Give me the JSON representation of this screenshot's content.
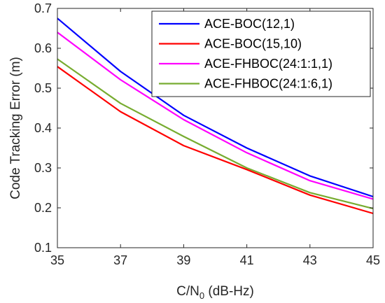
{
  "chart_data": {
    "type": "line",
    "title": "",
    "xlabel_main": "C/N",
    "xlabel_sub": "0",
    "xlabel_tail": " (dB-Hz)",
    "ylabel": "Code Tracking Error (m)",
    "x": [
      35,
      37,
      39,
      41,
      43,
      45
    ],
    "xlim": [
      35,
      45
    ],
    "ylim": [
      0.1,
      0.7
    ],
    "xticks": [
      "35",
      "37",
      "39",
      "41",
      "43",
      "45"
    ],
    "yticks": [
      "0.1",
      "0.2",
      "0.3",
      "0.4",
      "0.5",
      "0.6",
      "0.7"
    ],
    "grid": false,
    "legend_position": "top-right",
    "series": [
      {
        "name": "ACE-BOC(12,1)",
        "color": "#0000ff",
        "values": [
          0.675,
          0.542,
          0.432,
          0.35,
          0.28,
          0.228
        ]
      },
      {
        "name": "ACE-BOC(15,10)",
        "color": "#ff0000",
        "values": [
          0.554,
          0.441,
          0.356,
          0.296,
          0.232,
          0.186
        ]
      },
      {
        "name": "ACE-FHBOC(24:1:1,1)",
        "color": "#ff00ff",
        "values": [
          0.64,
          0.521,
          0.421,
          0.338,
          0.268,
          0.222
        ]
      },
      {
        "name": "ACE-FHBOC(24:1:6,1)",
        "color": "#77ac30",
        "values": [
          0.573,
          0.462,
          0.379,
          0.3,
          0.238,
          0.198
        ]
      }
    ]
  }
}
